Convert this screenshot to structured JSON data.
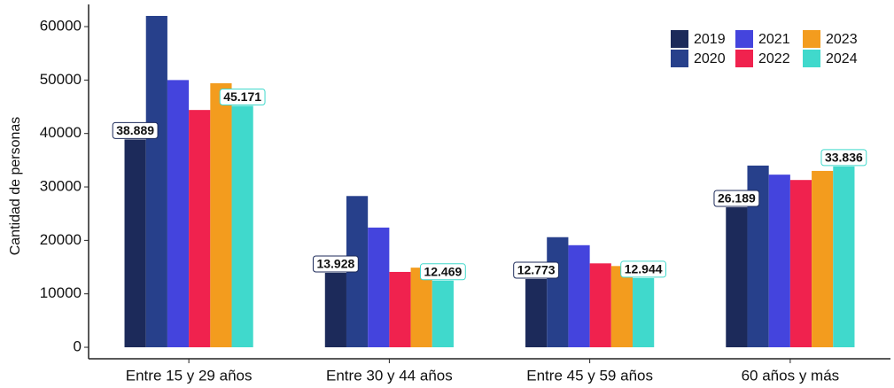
{
  "chart_data": {
    "type": "bar",
    "y_label": "Cantidad de personas",
    "categories": [
      "Entre 15 y 29 años",
      "Entre 30 y 44 años",
      "Entre 45 y 59 años",
      "60 años y más"
    ],
    "series": [
      {
        "name": "2019",
        "color": "#1c2a5a",
        "values": [
          38889,
          13928,
          12773,
          26189
        ],
        "value_labels": [
          "38.889",
          "13.928",
          "12.773",
          "26.189"
        ]
      },
      {
        "name": "2020",
        "color": "#27408b",
        "values": [
          62000,
          28300,
          20600,
          34000
        ]
      },
      {
        "name": "2021",
        "color": "#4444dd",
        "values": [
          50000,
          22400,
          19100,
          32300
        ]
      },
      {
        "name": "2022",
        "color": "#f0224e",
        "values": [
          44400,
          14100,
          15700,
          31300
        ]
      },
      {
        "name": "2023",
        "color": "#f39c1e",
        "values": [
          49400,
          14900,
          15200,
          33000
        ]
      },
      {
        "name": "2024",
        "color": "#40d9cc",
        "values": [
          45171,
          12469,
          12944,
          33836
        ],
        "value_labels": [
          "45.171",
          "12.469",
          "12.944",
          "33.836"
        ]
      }
    ],
    "ylim": [
      -2150,
      64150
    ],
    "yticks": [
      0,
      10000,
      20000,
      30000,
      40000,
      50000,
      60000
    ],
    "legend": "top-right"
  }
}
